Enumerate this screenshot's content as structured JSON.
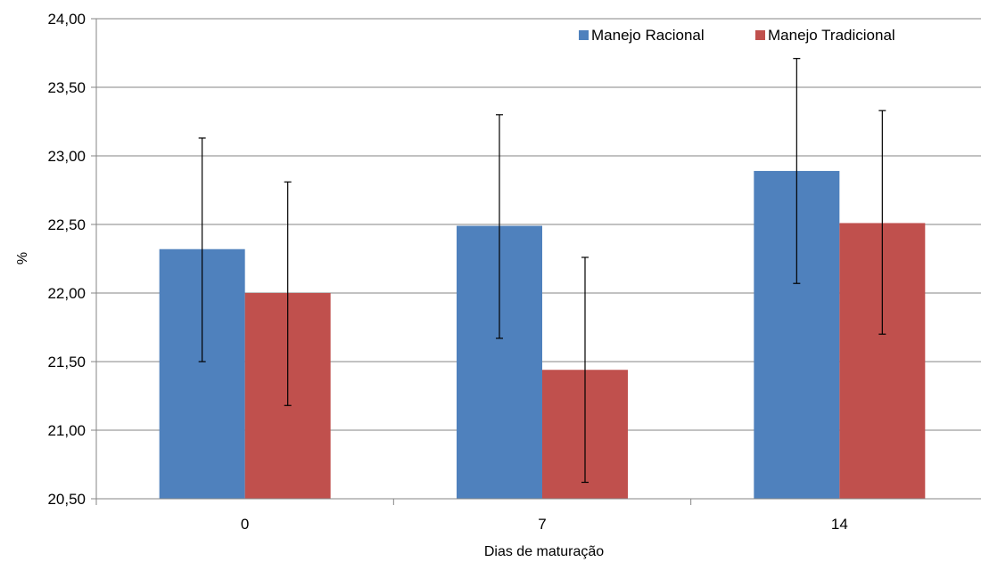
{
  "chart_data": {
    "type": "bar",
    "title": "",
    "xlabel": "Dias de maturação",
    "ylabel": "%",
    "categories": [
      "0",
      "7",
      "14"
    ],
    "ylim": [
      20.5,
      24.0
    ],
    "yticks": [
      20.5,
      21.0,
      21.5,
      22.0,
      22.5,
      23.0,
      23.5,
      24.0
    ],
    "ytick_labels": [
      "20,50",
      "21,00",
      "21,50",
      "22,00",
      "22,50",
      "23,00",
      "23,50",
      "24,00"
    ],
    "grid": true,
    "legend_position": "top-right",
    "error_bars": true,
    "series": [
      {
        "name": "Manejo Racional",
        "color": "#4F81BD",
        "values": [
          22.32,
          22.49,
          22.89
        ],
        "err_low": [
          21.5,
          21.67,
          22.07
        ],
        "err_high": [
          23.13,
          23.3,
          23.71
        ]
      },
      {
        "name": "Manejo Tradicional",
        "color": "#C0504D",
        "values": [
          22.0,
          21.44,
          22.51
        ],
        "err_low": [
          21.18,
          20.62,
          21.7
        ],
        "err_high": [
          22.81,
          22.26,
          23.33
        ]
      }
    ]
  }
}
